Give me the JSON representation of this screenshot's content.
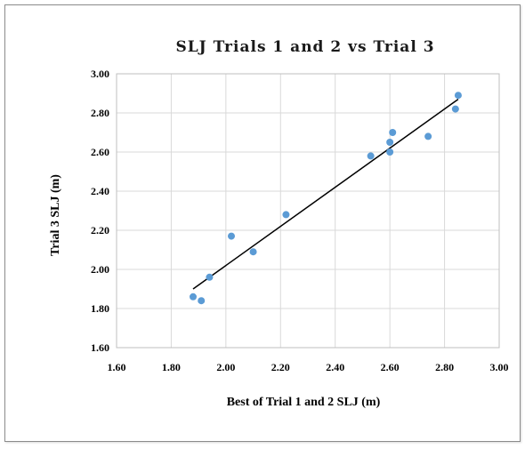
{
  "chart_data": {
    "type": "scatter",
    "title": "SLJ Trials 1 and 2 vs Trial 3",
    "xlabel": "Best of Trial 1 and 2 SLJ (m)",
    "ylabel": "Trial 3 SLJ (m)",
    "xlim": [
      1.6,
      3.0
    ],
    "ylim": [
      1.6,
      3.0
    ],
    "x_ticks": [
      "1.60",
      "1.80",
      "2.00",
      "2.20",
      "2.40",
      "2.60",
      "2.80",
      "3.00"
    ],
    "y_ticks": [
      "1.60",
      "1.80",
      "2.00",
      "2.20",
      "2.40",
      "2.60",
      "2.80",
      "3.00"
    ],
    "grid": "vertical and horizontal",
    "legend": "none",
    "series": [
      {
        "color": "#5b9bd5",
        "points": [
          {
            "x": 1.88,
            "y": 1.86
          },
          {
            "x": 1.91,
            "y": 1.84
          },
          {
            "x": 1.94,
            "y": 1.96
          },
          {
            "x": 2.02,
            "y": 2.17
          },
          {
            "x": 2.1,
            "y": 2.09
          },
          {
            "x": 2.22,
            "y": 2.28
          },
          {
            "x": 2.53,
            "y": 2.58
          },
          {
            "x": 2.6,
            "y": 2.6
          },
          {
            "x": 2.6,
            "y": 2.65
          },
          {
            "x": 2.61,
            "y": 2.7
          },
          {
            "x": 2.74,
            "y": 2.68
          },
          {
            "x": 2.84,
            "y": 2.82
          },
          {
            "x": 2.85,
            "y": 2.89
          }
        ]
      }
    ],
    "trendline": {
      "type": "linear",
      "color": "#000000",
      "x_start": 1.88,
      "y_start": 1.9,
      "x_end": 2.85,
      "y_end": 2.87
    }
  }
}
